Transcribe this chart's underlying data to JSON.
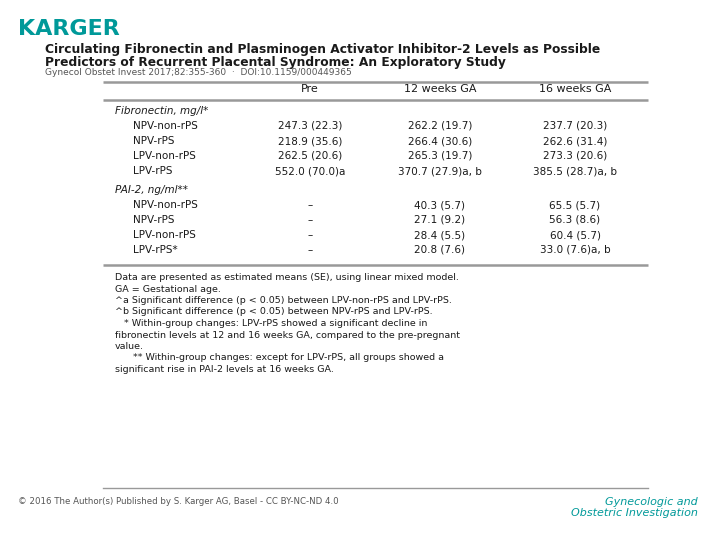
{
  "bg_color": "#ffffff",
  "karger_color": "#009999",
  "title_line1": "Circulating Fibronectin and Plasminogen Activator Inhibitor-2 Levels as Possible",
  "title_line2": "Predictors of Recurrent Placental Syndrome: An Exploratory Study",
  "subtitle": "Gynecol Obstet Invest 2017;82:355-360  ·  DOI:10.1159/000449365",
  "col_headers": [
    "Pre",
    "12 weeks GA",
    "16 weeks GA"
  ],
  "section1_header": "Fibronectin, mg/l*",
  "section1_rows": [
    [
      "NPV-non-rPS",
      "247.3 (22.3)",
      "262.2 (19.7)",
      "237.7 (20.3)"
    ],
    [
      "NPV-rPS",
      "218.9 (35.6)",
      "266.4 (30.6)",
      "262.6 (31.4)"
    ],
    [
      "LPV-non-rPS",
      "262.5 (20.6)",
      "265.3 (19.7)",
      "273.3 (20.6)"
    ],
    [
      "LPV-rPS",
      "552.0 (70.0)^a",
      "370.7 (27.9)^a, b",
      "385.5 (28.7)^a, b"
    ]
  ],
  "section2_header": "PAI-2, ng/ml**",
  "section2_rows": [
    [
      "NPV-non-rPS",
      "–",
      "40.3 (5.7)",
      "65.5 (5.7)"
    ],
    [
      "NPV-rPS",
      "–",
      "27.1 (9.2)",
      "56.3 (8.6)"
    ],
    [
      "LPV-non-rPS",
      "–",
      "28.4 (5.5)",
      "60.4 (5.7)"
    ],
    [
      "LPV-rPS*",
      "–",
      "20.8 (7.6)",
      "33.0 (7.6)^a, b"
    ]
  ],
  "footnote_lines": [
    "Data are presented as estimated means (SE), using linear mixed model.",
    "GA = Gestational age.",
    "^a Significant difference (p < 0.05) between LPV-non-rPS and LPV-rPS.",
    "^b Significant difference (p < 0.05) between NPV-rPS and LPV-rPS.",
    "   * Within-group changes: LPV-rPS showed a significant decline in",
    "fibronectin levels at 12 and 16 weeks GA, compared to the pre-pregnant",
    "value.",
    "      ** Within-group changes: except for LPV-rPS, all groups showed a",
    "significant rise in PAI-2 levels at 16 weeks GA."
  ],
  "copyright": "© 2016 The Author(s) Published by S. Karger AG, Basel - CC BY-NC-ND 4.0",
  "journal_line1": "Gynecologic and",
  "journal_line2": "Obstetric Investigation",
  "journal_color": "#009999",
  "text_color": "#1a1a1a",
  "line_color": "#999999"
}
